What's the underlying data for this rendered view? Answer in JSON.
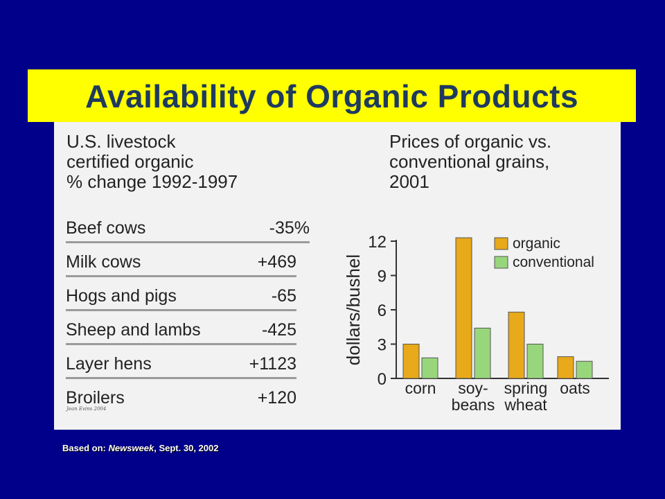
{
  "title": "Availability of Organic Products",
  "livestock": {
    "heading": "U.S. livestock certified organic % change 1992-1997",
    "heading_lines": [
      "U.S. livestock",
      "certified organic",
      "% change 1992-1997"
    ],
    "rows": [
      {
        "name": "Beef cows",
        "value": "-35%"
      },
      {
        "name": "Milk cows",
        "value": "+469"
      },
      {
        "name": "Hogs and pigs",
        "value": "-65"
      },
      {
        "name": "Sheep and lambs",
        "value": "-425"
      },
      {
        "name": "Layer hens",
        "value": "+1123"
      },
      {
        "name": "Broilers",
        "value": "+120"
      }
    ],
    "credit": "Jean Evins 2004"
  },
  "grains": {
    "heading_lines": [
      "Prices of organic vs.",
      "conventional grains,",
      "2001"
    ]
  },
  "chart_data": {
    "type": "bar",
    "title": "Prices of organic vs. conventional grains, 2001",
    "ylabel": "dollars/bushel",
    "xlabel": "",
    "categories": [
      "corn",
      "soy- beans",
      "spring wheat",
      "oats"
    ],
    "category_lines": [
      [
        "corn"
      ],
      [
        "soy-",
        "beans"
      ],
      [
        "spring",
        "wheat"
      ],
      [
        "oats"
      ]
    ],
    "series": [
      {
        "name": "organic",
        "color": "#e8a91a",
        "values": [
          3.0,
          12.3,
          5.8,
          1.9
        ]
      },
      {
        "name": "conventional",
        "color": "#98d67c",
        "values": [
          1.8,
          4.4,
          3.0,
          1.5
        ]
      }
    ],
    "ylim": [
      0,
      12
    ],
    "yticks": [
      0,
      3,
      6,
      9,
      12
    ],
    "legend_position": "top-right",
    "grid": false
  },
  "footnote": {
    "prefix": "Based on:",
    "source": "Newsweek",
    "date": ", Sept. 30, 2002"
  }
}
